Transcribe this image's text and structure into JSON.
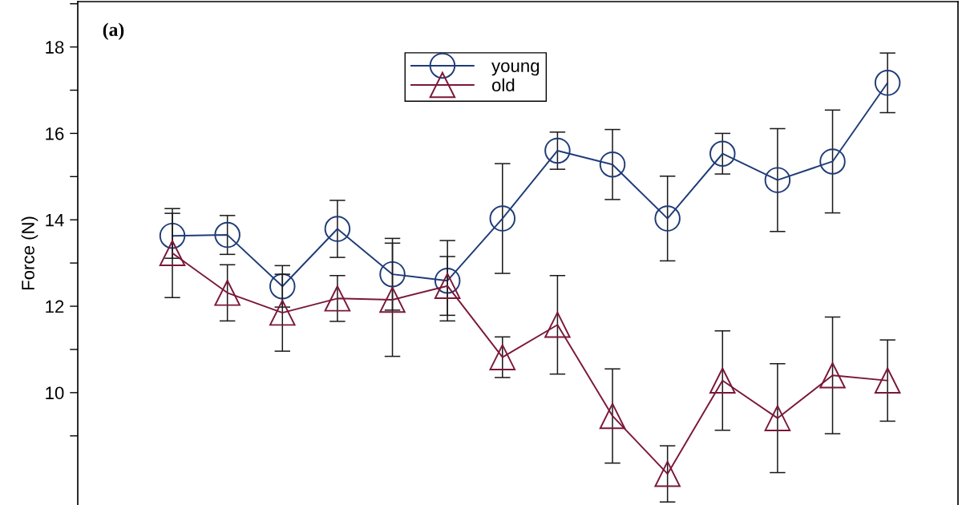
{
  "chart_data": {
    "type": "line",
    "categories": [
      null,
      null,
      null,
      null,
      null,
      null,
      null,
      null,
      null,
      null,
      null,
      null,
      null,
      null
    ],
    "ylabel": "Force (N)",
    "annotations": [
      "(a)"
    ],
    "series": [
      {
        "name": "young",
        "color": "#1f3c78",
        "marker": "circle",
        "values": [
          13.63,
          13.65,
          12.46,
          13.79,
          12.74,
          12.59,
          14.03,
          15.6,
          15.28,
          14.03,
          15.53,
          14.92,
          15.35,
          17.17
        ],
        "errors": [
          0.52,
          0.45,
          0.48,
          0.66,
          0.83,
          0.93,
          1.27,
          0.43,
          0.81,
          0.98,
          0.47,
          1.19,
          1.19,
          0.69
        ]
      },
      {
        "name": "old",
        "color": "#7a1838",
        "marker": "triangle",
        "values": [
          13.23,
          12.31,
          11.85,
          12.18,
          12.15,
          12.47,
          10.82,
          11.57,
          9.46,
          8.12,
          10.28,
          9.41,
          10.4,
          10.28
        ],
        "errors": [
          1.03,
          0.65,
          0.89,
          0.53,
          1.31,
          0.68,
          0.47,
          1.14,
          1.09,
          0.65,
          1.15,
          1.26,
          1.35,
          0.94
        ]
      }
    ],
    "ylim": [
      7.4,
      19.05
    ],
    "yticks": [
      10,
      12,
      14,
      16,
      18
    ],
    "line_style": "solid",
    "legend": "top",
    "tick_labels": "y"
  }
}
